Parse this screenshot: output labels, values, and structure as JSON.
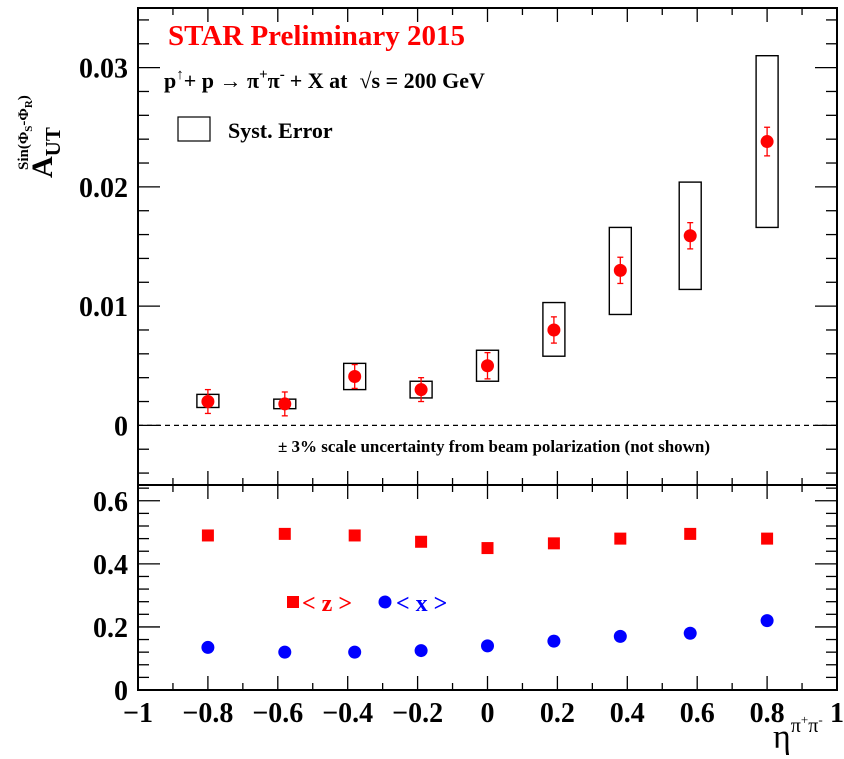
{
  "colors": {
    "asym": "#ff0000",
    "z": "#ff0000",
    "x": "#0000ff",
    "frame": "#000000"
  },
  "header": {
    "title": "STAR Preliminary 2015",
    "reaction_lhs": "p",
    "reaction_arrow_sup": "↑",
    "reaction_mid": "+ p  →  π",
    "reaction_pi_plus_sup": "+",
    "reaction_pi": "π",
    "reaction_pi_minus_sup": "-",
    "reaction_rhs": "+ X at",
    "reaction_sqrt": "√",
    "reaction_energy": "s = 200 GeV",
    "syst_legend": "Syst. Error",
    "scale_note": "± 3% scale uncertainty from beam polarization (not shown)"
  },
  "chart_data": [
    {
      "type": "scatter",
      "panel": "top",
      "ylabel_main": "A",
      "ylabel_sub": "UT",
      "ylabel_sup_sin": "Sin(Φ",
      "ylabel_sup_s": "S",
      "ylabel_sup_dash": "-Φ",
      "ylabel_sup_r": "R",
      "ylabel_sup_close": ")",
      "ylim": [
        -0.005,
        0.035
      ],
      "xlim": [
        -1,
        1
      ],
      "ytick_labels": [
        "0",
        "0.01",
        "0.02",
        "0.03"
      ],
      "yticks": [
        0,
        0.01,
        0.02,
        0.03
      ],
      "series": [
        {
          "x": [
            -0.8,
            -0.58,
            -0.38,
            -0.19,
            0.0,
            0.19,
            0.38,
            0.58,
            0.8
          ],
          "y": [
            0.002,
            0.0018,
            0.0041,
            0.003,
            0.005,
            0.008,
            0.013,
            0.0159,
            0.0238
          ],
          "stat_err": [
            0.001,
            0.001,
            0.001,
            0.001,
            0.0011,
            0.0011,
            0.0011,
            0.0011,
            0.0012
          ],
          "syst_lo": [
            0.0015,
            0.0014,
            0.003,
            0.0023,
            0.0037,
            0.0058,
            0.0093,
            0.0114,
            0.0166
          ],
          "syst_hi": [
            0.0026,
            0.0022,
            0.0052,
            0.0037,
            0.0063,
            0.0103,
            0.0166,
            0.0204,
            0.031
          ]
        }
      ],
      "reference_line": 0,
      "grid": false
    },
    {
      "type": "scatter",
      "panel": "bottom",
      "xlabel_main": "η",
      "xlabel_sup_pi1": "π",
      "xlabel_sup_plus": "+",
      "xlabel_sup_pi2": "π",
      "xlabel_sup_minus": "-",
      "xlim": [
        -1,
        1
      ],
      "ylim": [
        0,
        0.65
      ],
      "xtick_labels": [
        "−1",
        "−0.8",
        "−0.6",
        "−0.4",
        "−0.2",
        "0",
        "0.2",
        "0.4",
        "0.6",
        "0.8",
        "1"
      ],
      "xticks": [
        -1,
        -0.8,
        -0.6,
        -0.4,
        -0.2,
        0,
        0.2,
        0.4,
        0.6,
        0.8,
        1
      ],
      "ytick_labels": [
        "0",
        "0.2",
        "0.4",
        "0.6"
      ],
      "yticks": [
        0,
        0.2,
        0.4,
        0.6
      ],
      "series": [
        {
          "name": "< z >",
          "marker": "square",
          "x": [
            -0.8,
            -0.58,
            -0.38,
            -0.19,
            0.0,
            0.19,
            0.38,
            0.58,
            0.8
          ],
          "y": [
            0.49,
            0.495,
            0.49,
            0.47,
            0.45,
            0.465,
            0.48,
            0.495,
            0.48
          ]
        },
        {
          "name": "< x >",
          "marker": "circle",
          "x": [
            -0.8,
            -0.58,
            -0.38,
            -0.19,
            0.0,
            0.19,
            0.38,
            0.58,
            0.8
          ],
          "y": [
            0.135,
            0.12,
            0.12,
            0.125,
            0.14,
            0.155,
            0.17,
            0.18,
            0.22
          ]
        }
      ],
      "legend_location": "left, inside",
      "grid": false
    }
  ]
}
